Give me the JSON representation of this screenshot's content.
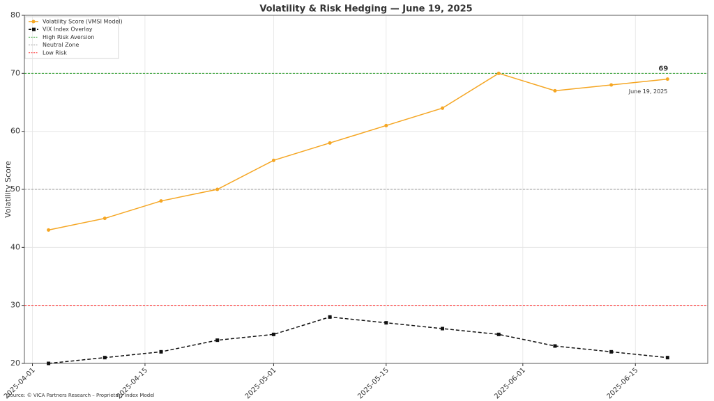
{
  "chart_data": {
    "type": "line",
    "title": "Volatility & Risk Hedging — June 19, 2025",
    "ylabel": "Volatility Score",
    "x": [
      "2025-04-03",
      "2025-04-10",
      "2025-04-17",
      "2025-04-24",
      "2025-05-01",
      "2025-05-08",
      "2025-05-15",
      "2025-05-22",
      "2025-05-29",
      "2025-06-05",
      "2025-06-12",
      "2025-06-19"
    ],
    "series": [
      {
        "name": "Volatility Score (VMSI Model)",
        "color": "#f5a623",
        "marker": "circle",
        "dash": "solid",
        "values": [
          43,
          45,
          48,
          50,
          55,
          58,
          61,
          64,
          70,
          67,
          68,
          69
        ]
      },
      {
        "name": "VIX Index Overlay",
        "color": "#111111",
        "marker": "square",
        "dash": "dashed",
        "values": [
          20,
          21,
          22,
          24,
          25,
          28,
          27,
          26,
          25,
          23,
          22,
          21
        ]
      }
    ],
    "reference_lines": [
      {
        "name": "High Risk Aversion",
        "value": 70,
        "color": "#2ca02c"
      },
      {
        "name": "Neutral Zone",
        "value": 50,
        "color": "#999999"
      },
      {
        "name": "Low Risk",
        "value": 30,
        "color": "#ff3030"
      }
    ],
    "annotation": "June 19, 2025",
    "source": "Source: © VICA Partners Research – Proprietary Index Model",
    "xlim": [
      "2025-03-31",
      "2025-06-24"
    ],
    "xticks": [
      "2025-04-01",
      "2025-04-15",
      "2025-05-01",
      "2025-05-15",
      "2025-06-01",
      "2025-06-15"
    ],
    "ylim": [
      20,
      80
    ],
    "yticks": [
      20,
      30,
      40,
      50,
      60,
      70,
      80
    ],
    "grid": true
  }
}
